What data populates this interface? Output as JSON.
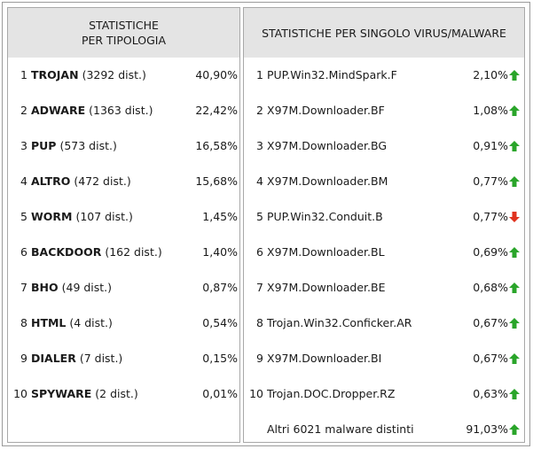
{
  "left_panel": {
    "header_line1": "STATISTICHE",
    "header_line2": "PER TIPOLOGIA",
    "rows": [
      {
        "n": "1",
        "name": "TROJAN",
        "detail": "(3292 dist.)",
        "pct": "40,90%"
      },
      {
        "n": "2",
        "name": "ADWARE",
        "detail": "(1363 dist.)",
        "pct": "22,42%"
      },
      {
        "n": "3",
        "name": "PUP",
        "detail": "(573 dist.)",
        "pct": "16,58%"
      },
      {
        "n": "4",
        "name": "ALTRO",
        "detail": "(472 dist.)",
        "pct": "15,68%"
      },
      {
        "n": "5",
        "name": "WORM",
        "detail": "(107 dist.)",
        "pct": "1,45%"
      },
      {
        "n": "6",
        "name": "BACKDOOR",
        "detail": "(162 dist.)",
        "pct": "1,40%"
      },
      {
        "n": "7",
        "name": "BHO",
        "detail": "(49 dist.)",
        "pct": "0,87%"
      },
      {
        "n": "8",
        "name": "HTML",
        "detail": "(4 dist.)",
        "pct": "0,54%"
      },
      {
        "n": "9",
        "name": "DIALER",
        "detail": "(7 dist.)",
        "pct": "0,15%"
      },
      {
        "n": "10",
        "name": "SPYWARE",
        "detail": "(2 dist.)",
        "pct": "0,01%"
      }
    ]
  },
  "right_panel": {
    "header": "STATISTICHE PER SINGOLO VIRUS/MALWARE",
    "rows": [
      {
        "n": "1",
        "name": "PUP.Win32.MindSpark.F",
        "pct": "2,10%",
        "trend": "up"
      },
      {
        "n": "2",
        "name": "X97M.Downloader.BF",
        "pct": "1,08%",
        "trend": "up"
      },
      {
        "n": "3",
        "name": "X97M.Downloader.BG",
        "pct": "0,91%",
        "trend": "up"
      },
      {
        "n": "4",
        "name": "X97M.Downloader.BM",
        "pct": "0,77%",
        "trend": "up"
      },
      {
        "n": "5",
        "name": "PUP.Win32.Conduit.B",
        "pct": "0,77%",
        "trend": "down"
      },
      {
        "n": "6",
        "name": "X97M.Downloader.BL",
        "pct": "0,69%",
        "trend": "up"
      },
      {
        "n": "7",
        "name": "X97M.Downloader.BE",
        "pct": "0,68%",
        "trend": "up"
      },
      {
        "n": "8",
        "name": "Trojan.Win32.Conficker.AR",
        "pct": "0,67%",
        "trend": "up"
      },
      {
        "n": "9",
        "name": "X97M.Downloader.BI",
        "pct": "0,67%",
        "trend": "up"
      },
      {
        "n": "10",
        "name": "Trojan.DOC.Dropper.RZ",
        "pct": "0,63%",
        "trend": "up"
      }
    ],
    "others": {
      "label": "Altri 6021 malware distinti",
      "pct": "91,03%",
      "trend": "up"
    }
  },
  "colors": {
    "header_bg": "#e4e4e4",
    "arrow_up": "#2aa52a",
    "arrow_down": "#e0321e"
  }
}
